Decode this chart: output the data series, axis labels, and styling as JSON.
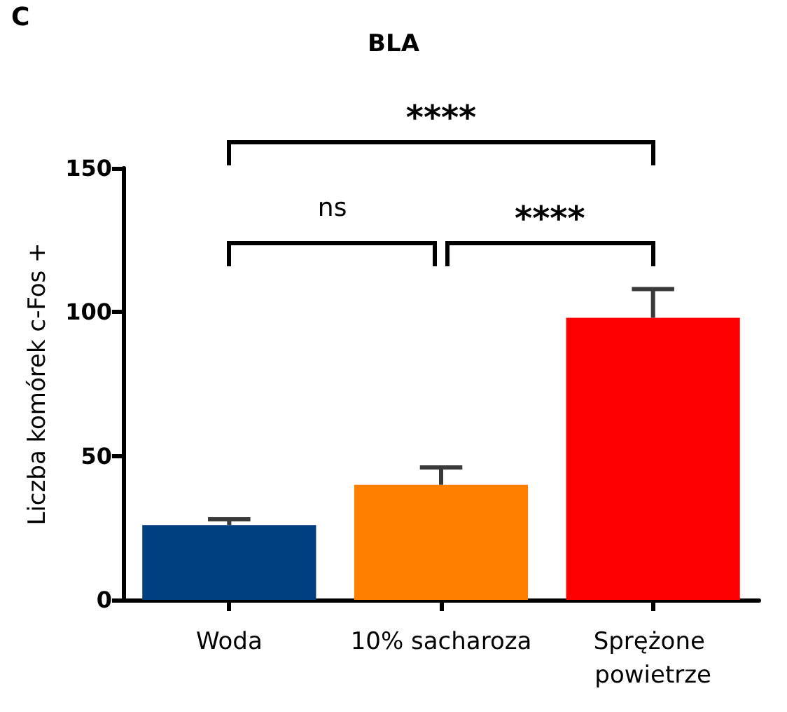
{
  "chart_data": {
    "type": "bar",
    "title": "BLA",
    "ylabel": "Liczba komórek c-Fos +",
    "categories": [
      "Woda",
      "10% sacharoza",
      "Sprężone powietrze"
    ],
    "values": [
      26,
      40,
      98
    ],
    "colors": [
      "#003f7f",
      "#ff8000",
      "#ff0000"
    ],
    "errors": [
      [
        26,
        28
      ],
      [
        40,
        46
      ],
      [
        98,
        108
      ]
    ],
    "ylim": [
      0,
      150
    ],
    "yticks": [
      0,
      50,
      100,
      150
    ],
    "grid": false,
    "annotations": [
      "C",
      "****",
      "ns",
      "****"
    ]
  }
}
